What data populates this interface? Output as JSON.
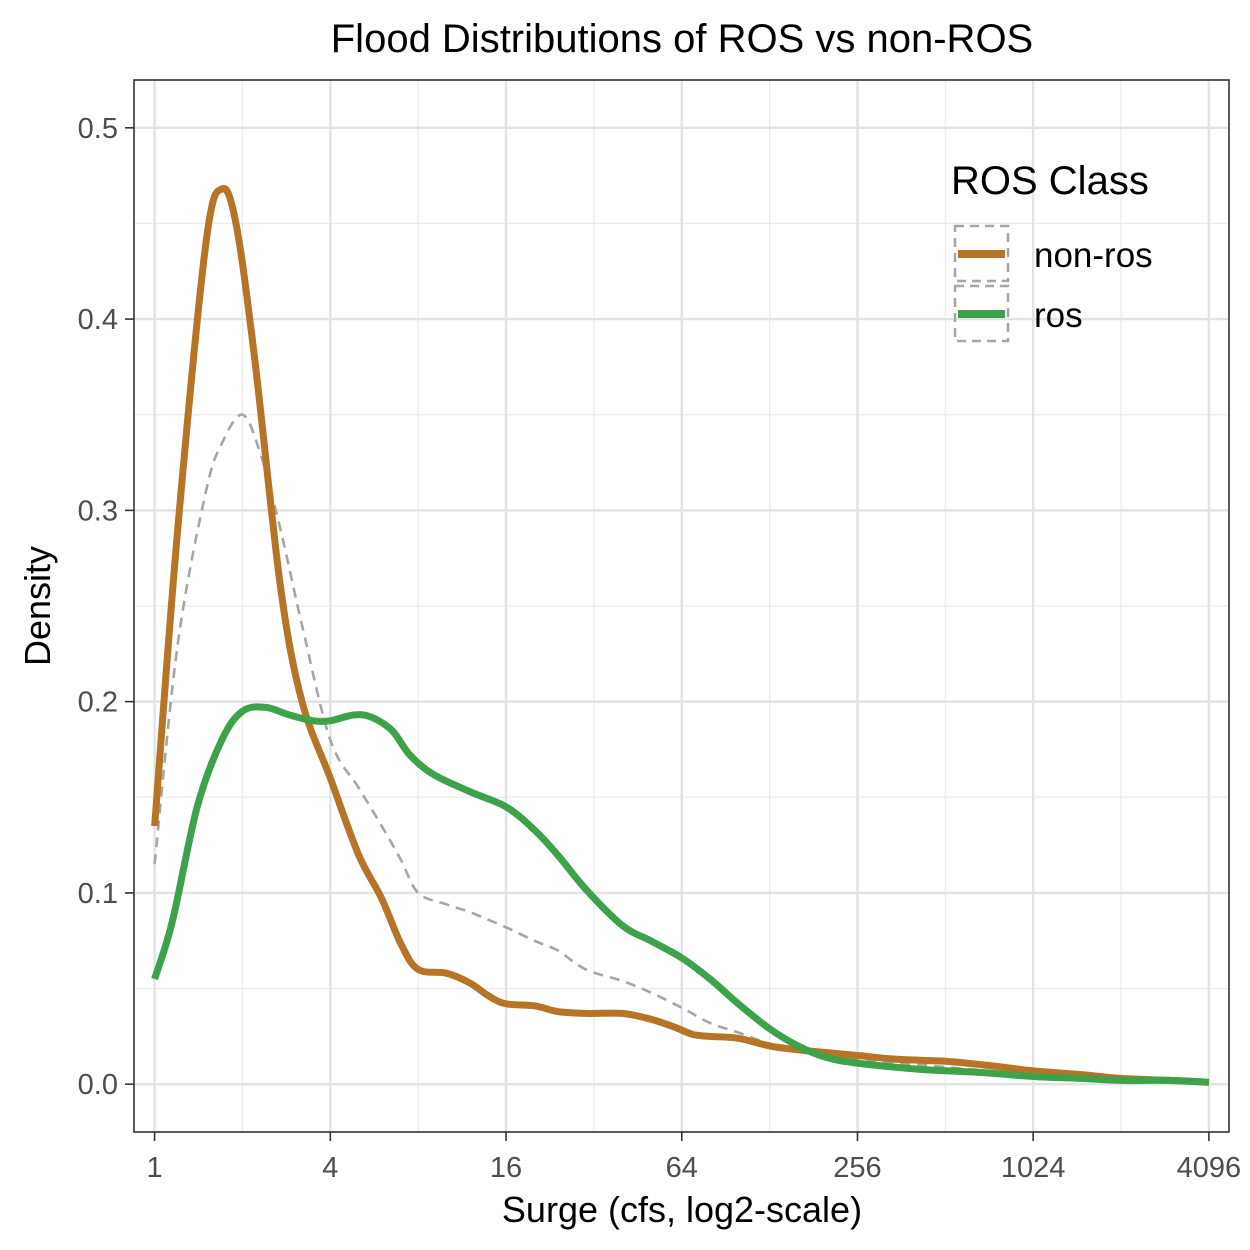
{
  "chart_data": {
    "type": "line",
    "title": "Flood Distributions of ROS vs non-ROS",
    "xlabel": "Surge (cfs, log2-scale)",
    "ylabel": "Density",
    "x_scale": "log2",
    "xlim": [
      0.85,
      4800
    ],
    "ylim": [
      -0.025,
      0.525
    ],
    "x_ticks": [
      1,
      4,
      16,
      64,
      256,
      1024,
      4096
    ],
    "x_tick_labels": [
      "1",
      "4",
      "16",
      "64",
      "256",
      "1024",
      "4096"
    ],
    "y_ticks": [
      0.0,
      0.1,
      0.2,
      0.3,
      0.4,
      0.5
    ],
    "y_tick_labels": [
      "0.0",
      "0.1",
      "0.2",
      "0.3",
      "0.4",
      "0.5"
    ],
    "grid": true,
    "legend": {
      "title": "ROS Class",
      "position": "top-right"
    },
    "series": [
      {
        "name": "non-ros",
        "color": "#b87426",
        "style": "solid",
        "x": [
          1,
          1.2,
          1.5,
          1.7,
          1.9,
          2.2,
          2.7,
          3.2,
          4,
          5,
          6,
          7,
          8,
          10,
          12,
          14,
          16,
          20,
          24,
          30,
          40,
          50,
          60,
          70,
          80,
          100,
          128,
          160,
          256,
          350,
          512,
          700,
          1024,
          1500,
          2048,
          3000,
          4096
        ],
        "y": [
          0.135,
          0.29,
          0.44,
          0.468,
          0.45,
          0.38,
          0.26,
          0.2,
          0.16,
          0.12,
          0.097,
          0.073,
          0.06,
          0.058,
          0.053,
          0.046,
          0.042,
          0.041,
          0.038,
          0.037,
          0.037,
          0.034,
          0.03,
          0.026,
          0.025,
          0.024,
          0.02,
          0.018,
          0.015,
          0.013,
          0.012,
          0.01,
          0.007,
          0.005,
          0.003,
          0.002,
          0.001
        ]
      },
      {
        "name": "ros",
        "color": "#3ca34b",
        "style": "solid",
        "x": [
          1,
          1.15,
          1.4,
          1.7,
          2,
          2.4,
          2.9,
          3.5,
          4,
          4.8,
          5.5,
          6.5,
          7.5,
          9,
          12,
          16,
          20,
          24,
          30,
          40,
          50,
          64,
          80,
          100,
          128,
          160,
          200,
          256,
          400,
          512,
          700,
          1024,
          1500,
          2048,
          3000,
          4096
        ],
        "y": [
          0.055,
          0.085,
          0.145,
          0.18,
          0.195,
          0.197,
          0.193,
          0.19,
          0.19,
          0.193,
          0.192,
          0.185,
          0.172,
          0.162,
          0.153,
          0.145,
          0.133,
          0.12,
          0.102,
          0.083,
          0.075,
          0.066,
          0.055,
          0.042,
          0.029,
          0.02,
          0.014,
          0.011,
          0.008,
          0.007,
          0.006,
          0.004,
          0.003,
          0.002,
          0.002,
          0.001
        ]
      },
      {
        "name": "",
        "color": "#a6a6a6",
        "style": "dashed",
        "x": [
          1,
          1.2,
          1.5,
          1.7,
          2,
          2.3,
          2.7,
          3.2,
          4,
          5,
          6,
          7,
          8,
          10,
          12,
          16,
          20,
          24,
          30,
          40,
          50,
          64,
          80,
          100,
          128,
          160,
          256,
          512,
          1024,
          2048,
          4096
        ],
        "y": [
          0.115,
          0.23,
          0.31,
          0.335,
          0.35,
          0.33,
          0.29,
          0.24,
          0.18,
          0.155,
          0.135,
          0.117,
          0.1,
          0.094,
          0.09,
          0.082,
          0.075,
          0.07,
          0.06,
          0.054,
          0.048,
          0.04,
          0.032,
          0.027,
          0.021,
          0.017,
          0.013,
          0.009,
          0.005,
          0.002,
          0.001
        ]
      }
    ]
  }
}
